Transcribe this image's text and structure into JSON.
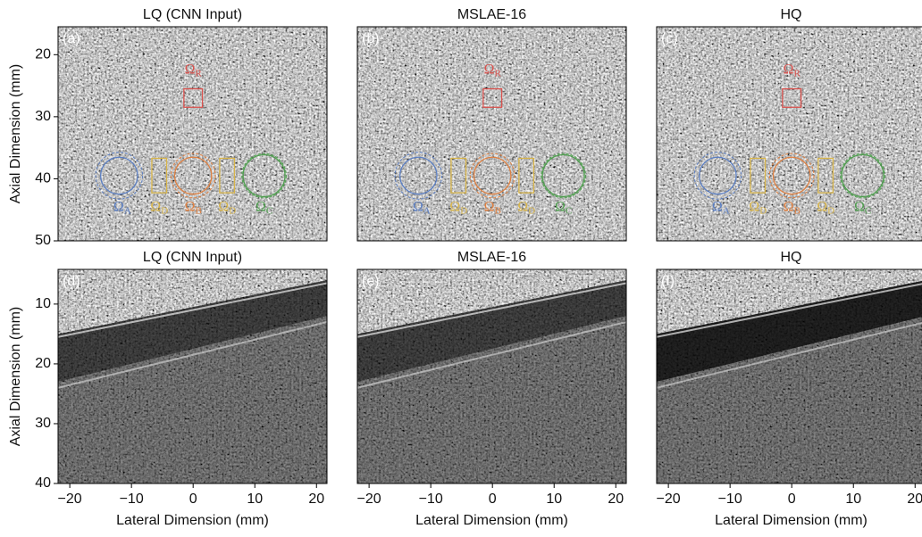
{
  "chart_data": [
    {
      "type": "image",
      "title": "LQ (CNN Input)",
      "panel_label": "(a)",
      "xlim": [
        -21.9,
        21.7
      ],
      "ylim": [
        50,
        15.5
      ],
      "yticks": [
        20,
        30,
        40,
        50
      ],
      "y_label": "Axial Dimension (mm)",
      "annotations": [
        {
          "symbol": "Ω",
          "subscript": "R"
        },
        {
          "symbol": "Ω",
          "subscript": "A"
        },
        {
          "symbol": "Ω",
          "subscript": "D"
        },
        {
          "symbol": "Ω",
          "subscript": "B"
        },
        {
          "symbol": "Ω",
          "subscript": "D"
        },
        {
          "symbol": "Ω",
          "subscript": "C"
        }
      ]
    },
    {
      "type": "image",
      "title": "MSLAE-16",
      "panel_label": "(b)",
      "xlim": [
        -21.9,
        21.7
      ],
      "ylim": [
        50,
        15.5
      ],
      "annotations": [
        {
          "symbol": "Ω",
          "subscript": "R"
        },
        {
          "symbol": "Ω",
          "subscript": "A"
        },
        {
          "symbol": "Ω",
          "subscript": "D"
        },
        {
          "symbol": "Ω",
          "subscript": "B"
        },
        {
          "symbol": "Ω",
          "subscript": "D"
        },
        {
          "symbol": "Ω",
          "subscript": "C"
        }
      ]
    },
    {
      "type": "image",
      "title": "HQ",
      "panel_label": "(c)",
      "xlim": [
        -21.9,
        21.7
      ],
      "ylim": [
        50,
        15.5
      ],
      "annotations": [
        {
          "symbol": "Ω",
          "subscript": "R"
        },
        {
          "symbol": "Ω",
          "subscript": "A"
        },
        {
          "symbol": "Ω",
          "subscript": "D"
        },
        {
          "symbol": "Ω",
          "subscript": "B"
        },
        {
          "symbol": "Ω",
          "subscript": "D"
        },
        {
          "symbol": "Ω",
          "subscript": "C"
        }
      ]
    },
    {
      "type": "image",
      "title": "LQ (CNN Input)",
      "panel_label": "(d)",
      "xlim": [
        -21.9,
        21.7
      ],
      "ylim": [
        40,
        4.2
      ],
      "yticks": [
        10,
        20,
        30,
        40
      ],
      "y_label": "Axial Dimension (mm)",
      "xticks": [
        {
          "value": -20,
          "label": "−20"
        },
        {
          "value": -10,
          "label": "−10"
        },
        0,
        10,
        20
      ],
      "x_label": "Lateral Dimension (mm)"
    },
    {
      "type": "image",
      "title": "MSLAE-16",
      "panel_label": "(e)",
      "xlim": [
        -21.9,
        21.7
      ],
      "ylim": [
        40,
        4.2
      ],
      "xticks": [
        {
          "value": -20,
          "label": "−20"
        },
        {
          "value": -10,
          "label": "−10"
        },
        0,
        10,
        20
      ],
      "x_label": "Lateral Dimension (mm)"
    },
    {
      "type": "image",
      "title": "HQ",
      "panel_label": "(f)",
      "xlim": [
        -21.9,
        21.7
      ],
      "ylim": [
        40,
        4.2
      ],
      "xticks": [
        {
          "value": -20,
          "label": "−20"
        },
        {
          "value": -10,
          "label": "−10"
        },
        0,
        10,
        20
      ],
      "x_label": "Lateral Dimension (mm)"
    }
  ]
}
